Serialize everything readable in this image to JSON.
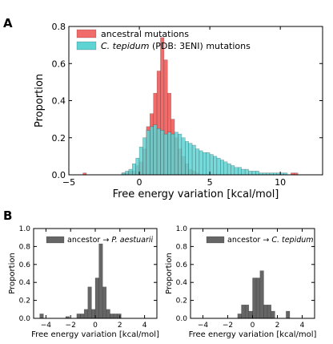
{
  "panels": {
    "a": "A",
    "b": "B"
  },
  "chart_data": [
    {
      "type": "bar",
      "subtype": "histogram",
      "panel": "A",
      "xlabel": "Free energy variation [kcal/mol]",
      "ylabel": "Proportion",
      "xlim": [
        -5,
        13
      ],
      "ylim": [
        0,
        0.8
      ],
      "xticks": [
        -5,
        0,
        5,
        10
      ],
      "yticks": [
        0.0,
        0.2,
        0.4,
        0.6,
        0.8
      ],
      "tick_labels_x": [
        "−5",
        "0",
        "5",
        "10"
      ],
      "tick_labels_y": [
        "0.0",
        "0.2",
        "0.4",
        "0.6",
        "0.8"
      ],
      "bin_width": 0.25,
      "bin_start": -5,
      "legend_position": "top-left",
      "series": [
        {
          "name": "ancestral mutations",
          "name_prefix": "",
          "name_italic": "",
          "name_suffix": "",
          "color": "#f26b6b",
          "values": [
            0,
            0,
            0,
            0,
            0.01,
            0,
            0,
            0,
            0,
            0,
            0,
            0,
            0,
            0,
            0,
            0.01,
            0.01,
            0.02,
            0.02,
            0.05,
            0.07,
            0.14,
            0.26,
            0.33,
            0.44,
            0.56,
            0.74,
            0.62,
            0.44,
            0.3,
            0.2,
            0.14,
            0.1,
            0.06,
            0.03,
            0.02,
            0.01,
            0,
            0,
            0,
            0,
            0,
            0,
            0,
            0,
            0,
            0,
            0,
            0,
            0,
            0,
            0,
            0,
            0,
            0,
            0,
            0,
            0,
            0,
            0,
            0,
            0,
            0,
            0.01,
            0.01,
            0,
            0,
            0,
            0,
            0,
            0,
            0
          ]
        },
        {
          "name": "C. tepidum (PDB: 3ENI) mutations",
          "name_prefix": "",
          "name_italic": "C. tepidum",
          "name_suffix": " (PDB: 3ENI) mutations",
          "color": "#5ed3d3",
          "values": [
            0,
            0,
            0,
            0,
            0,
            0,
            0,
            0,
            0,
            0,
            0,
            0,
            0,
            0,
            0,
            0.01,
            0.02,
            0.03,
            0.06,
            0.09,
            0.15,
            0.2,
            0.24,
            0.26,
            0.27,
            0.25,
            0.24,
            0.22,
            0.23,
            0.22,
            0.23,
            0.22,
            0.2,
            0.18,
            0.17,
            0.16,
            0.14,
            0.13,
            0.12,
            0.12,
            0.11,
            0.1,
            0.09,
            0.08,
            0.07,
            0.06,
            0.05,
            0.04,
            0.04,
            0.03,
            0.03,
            0.02,
            0.02,
            0.02,
            0.01,
            0.01,
            0.01,
            0.01,
            0.01,
            0.01,
            0.01,
            0.01,
            0,
            0,
            0,
            0,
            0,
            0,
            0,
            0,
            0,
            0
          ]
        }
      ]
    },
    {
      "type": "bar",
      "subtype": "histogram",
      "panel": "B-left",
      "xlabel": "Free energy variation [kcal/mol]",
      "ylabel": "Proportion",
      "xlim": [
        -5,
        5
      ],
      "ylim": [
        0,
        1.0
      ],
      "xticks": [
        -4,
        -2,
        0,
        2,
        4
      ],
      "yticks": [
        0.0,
        0.2,
        0.4,
        0.6,
        0.8,
        1.0
      ],
      "tick_labels_x": [
        "−4",
        "−2",
        "0",
        "2",
        "4"
      ],
      "tick_labels_y": [
        "0.0",
        "0.2",
        "0.4",
        "0.6",
        "0.8",
        "1.0"
      ],
      "bin_width": 0.3,
      "legend_position": "top-left",
      "series": [
        {
          "name": "ancestor → P. aestuarii",
          "name_prefix": "ancestor → ",
          "name_italic": "P. aestuarii",
          "color": "#666666",
          "x": [
            -4.5,
            -2.4,
            -1.5,
            -1.2,
            -0.9,
            -0.6,
            -0.3,
            0.0,
            0.3,
            0.6,
            0.9,
            1.2,
            1.5,
            1.8
          ],
          "values": [
            0.05,
            0.02,
            0.05,
            0.05,
            0.1,
            0.35,
            0.1,
            0.45,
            0.83,
            0.35,
            0.1,
            0.05,
            0.05,
            0.05
          ]
        }
      ]
    },
    {
      "type": "bar",
      "subtype": "histogram",
      "panel": "B-right",
      "xlabel": "Free energy variation [kcal/mol]",
      "ylabel": "Proportion",
      "xlim": [
        -5,
        5
      ],
      "ylim": [
        0,
        1.0
      ],
      "xticks": [
        -4,
        -2,
        0,
        2,
        4
      ],
      "yticks": [
        0.0,
        0.2,
        0.4,
        0.6,
        0.8,
        1.0
      ],
      "tick_labels_x": [
        "−4",
        "−2",
        "0",
        "2",
        "4"
      ],
      "tick_labels_y": [
        "0.0",
        "0.2",
        "0.4",
        "0.6",
        "0.8",
        "1.0"
      ],
      "bin_width": 0.3,
      "legend_position": "top-left",
      "series": [
        {
          "name": "ancestor → C. tepidum",
          "name_prefix": "ancestor → ",
          "name_italic": "C. tepidum",
          "color": "#666666",
          "x": [
            -1.2,
            -0.9,
            -0.6,
            -0.3,
            0.0,
            0.3,
            0.6,
            0.9,
            1.2,
            1.5,
            2.7
          ],
          "values": [
            0.05,
            0.15,
            0.15,
            0.08,
            0.45,
            0.45,
            0.53,
            0.15,
            0.15,
            0.08,
            0.08
          ]
        }
      ]
    }
  ]
}
